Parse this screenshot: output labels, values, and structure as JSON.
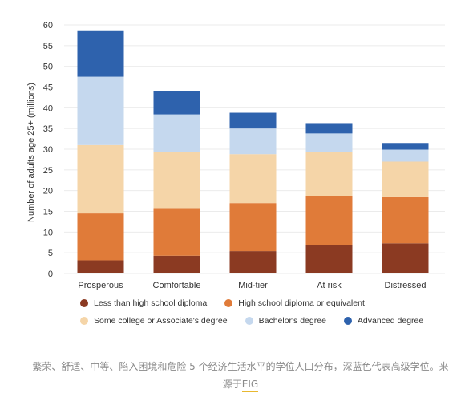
{
  "chart_data": {
    "type": "bar",
    "stacked": true,
    "categories": [
      "Prosperous",
      "Comfortable",
      "Mid-tier",
      "At risk",
      "Distressed"
    ],
    "series": [
      {
        "name": "Less than high school diploma",
        "color": "#8b3a22",
        "values": [
          3.2,
          4.3,
          5.4,
          6.8,
          7.3
        ]
      },
      {
        "name": "High school diploma or equivalent",
        "color": "#e07b39",
        "values": [
          11.3,
          11.5,
          11.6,
          11.8,
          11.1
        ]
      },
      {
        "name": "Some college or Associate's degree",
        "color": "#f5d5a8",
        "values": [
          16.5,
          13.5,
          11.8,
          10.7,
          8.6
        ]
      },
      {
        "name": "Bachelor's degree",
        "color": "#c5d8ee",
        "values": [
          16.5,
          9.1,
          6.2,
          4.5,
          2.9
        ]
      },
      {
        "name": "Advanced degree",
        "color": "#2e62ad",
        "values": [
          11.0,
          5.6,
          3.8,
          2.5,
          1.6
        ]
      }
    ],
    "ylabel": "Number of adults age 25+ (millions)",
    "xlabel": "",
    "ylim": [
      0,
      60
    ],
    "yticks": [
      0,
      5,
      10,
      15,
      20,
      25,
      30,
      35,
      40,
      45,
      50,
      55,
      60
    ],
    "grid": true,
    "legend_position": "bottom"
  },
  "caption": {
    "text": "繁荣、舒适、中等、陷入困境和危险 5 个经济生活水平的学位人口分布，深蓝色代表高级学位。来源于",
    "source": "EIG"
  }
}
